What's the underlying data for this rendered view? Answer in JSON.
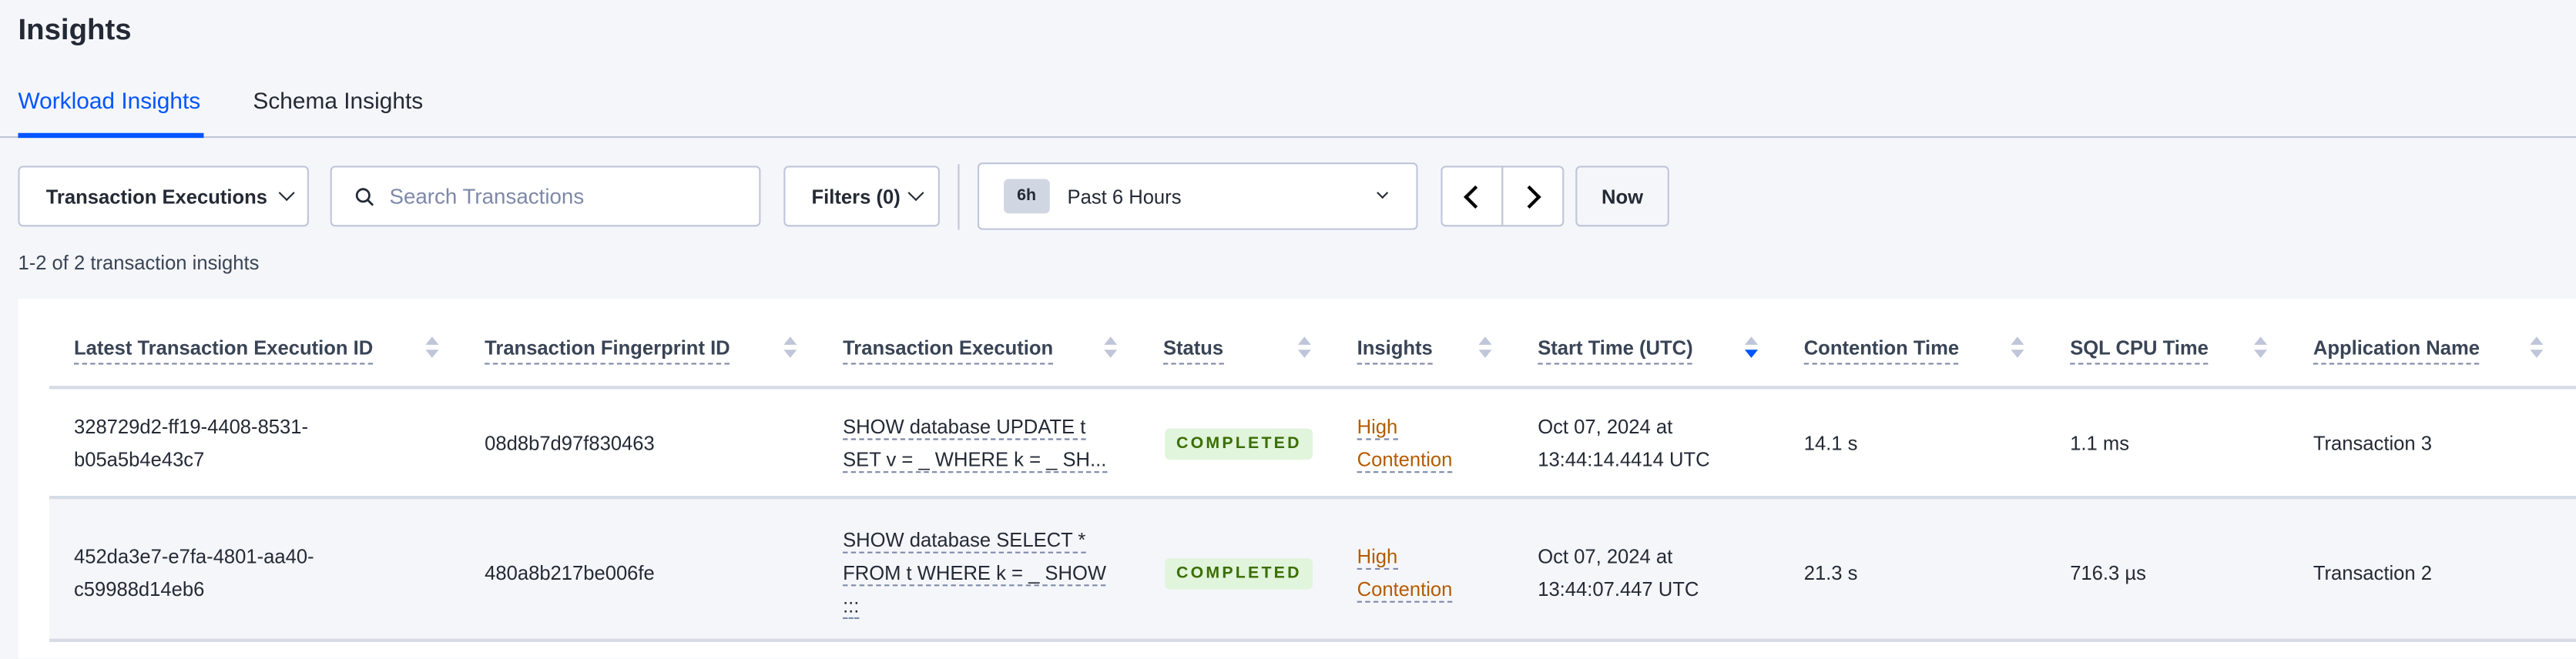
{
  "page": {
    "title": "Insights"
  },
  "tabs": [
    {
      "label": "Workload Insights",
      "active": true
    },
    {
      "label": "Schema Insights",
      "active": false
    }
  ],
  "toolbar": {
    "view_select": "Transaction Executions",
    "search_placeholder": "Search Transactions",
    "filters_label": "Filters (0)",
    "time_badge": "6h",
    "time_range": "Past 6 Hours",
    "now_label": "Now"
  },
  "result_count": "1-2 of 2 transaction insights",
  "table": {
    "columns": [
      "Latest Transaction Execution ID",
      "Transaction Fingerprint ID",
      "Transaction Execution",
      "Status",
      "Insights",
      "Start Time (UTC)",
      "Contention Time",
      "SQL CPU Time",
      "Application Name"
    ],
    "sorted_column": "Start Time (UTC)",
    "sort_direction": "descending",
    "rows": [
      {
        "exec_id_1": "328729d2-ff19-4408-8531-",
        "exec_id_2": "b05a5b4e43c7",
        "fingerprint": "08d8b7d97f830463",
        "query_1": "SHOW database UPDATE t",
        "query_2": "SET v = _ WHERE k = _ SH...",
        "query_3": "",
        "status": "COMPLETED",
        "insight_1": "High",
        "insight_2": "Contention",
        "start_1": "Oct 07, 2024 at",
        "start_2": "13:44:14.4414 UTC",
        "contention": "14.1 s",
        "cpu": "1.1 ms",
        "app": "Transaction 3"
      },
      {
        "exec_id_1": "452da3e7-e7fa-4801-aa40-",
        "exec_id_2": "c59988d14eb6",
        "fingerprint": "480a8b217be006fe",
        "query_1": "SHOW database SELECT *",
        "query_2": "FROM t WHERE k = _ SHOW",
        "query_3": ":::",
        "status": "COMPLETED",
        "insight_1": "High",
        "insight_2": "Contention",
        "start_1": "Oct 07, 2024 at",
        "start_2": "13:44:07.447 UTC",
        "contention": "21.3 s",
        "cpu": "716.3 µs",
        "app": "Transaction 2"
      }
    ]
  },
  "colors": {
    "accent": "#0055ff",
    "insight": "#b35c00",
    "status_bg": "#e1f4dc",
    "status_text": "#3b6e00"
  }
}
